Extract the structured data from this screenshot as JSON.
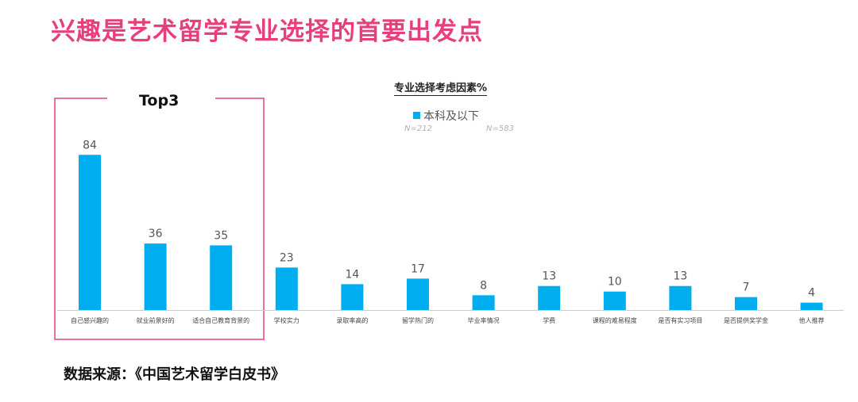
{
  "page": {
    "headline": "兴趣是艺术留学专业选择的首要出发点",
    "source": "数据来源：《中国艺术留学白皮书》"
  },
  "highlight": {
    "label": "Top3"
  },
  "chart_data": {
    "type": "bar",
    "title": "专业选择考虑因素%",
    "categories": [
      "自己感兴趣的",
      "就业前景好的",
      "适合自己教育背景的",
      "学校实力",
      "录取率高的",
      "留学热门的",
      "毕业率情况",
      "学费",
      "课程的难易程度",
      "是否有实习项目",
      "是否提供奖学金",
      "他人推荐"
    ],
    "series": [
      {
        "name": "本科及以下",
        "values": [
          84,
          36,
          35,
          23,
          14,
          17,
          8,
          13,
          10,
          13,
          7,
          4
        ],
        "color": "#00aeef"
      }
    ],
    "notes": [
      "N=212",
      "N=583"
    ],
    "ylim": [
      0,
      100
    ],
    "grid": false,
    "legend": "top-center"
  }
}
